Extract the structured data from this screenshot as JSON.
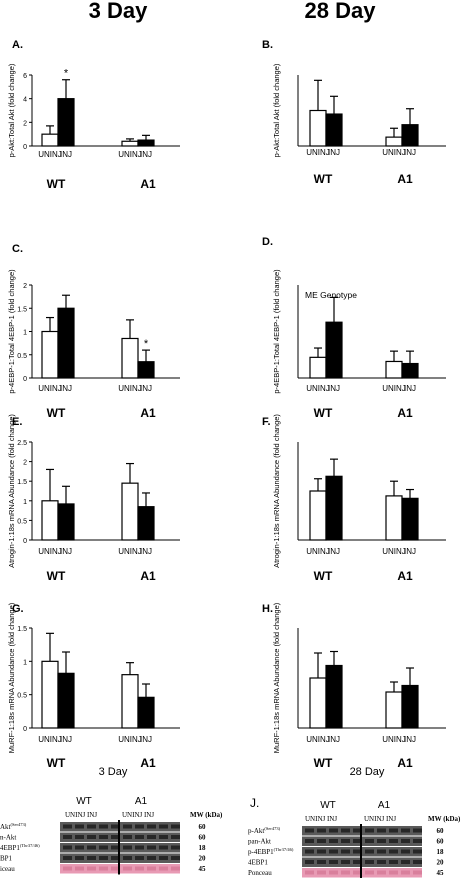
{
  "figure": {
    "col_titles": [
      "3 Day",
      "28 Day"
    ],
    "bottom_labels": [
      "3 Day",
      "28 Day"
    ],
    "legend": {
      "label": "ME Genotype",
      "panel": "D"
    },
    "blot_panel_label": "J.",
    "colors": {
      "bar_uninj": "#ffffff",
      "bar_inj": "#000000",
      "blot": "#5a5a5a",
      "ponceau": "#e89ab4"
    }
  },
  "chart_data": [
    {
      "panel": "A.",
      "type": "bar",
      "ylabel": "p-Akt:Total Akt (fold change)",
      "ylim": [
        0,
        6
      ],
      "yticks": [
        0,
        2,
        4,
        6
      ],
      "groups": [
        "WT",
        "A1"
      ],
      "categories": [
        "UNINJ",
        "INJ"
      ],
      "series": [
        {
          "name": "UNINJ",
          "values": [
            1.0,
            0.4
          ],
          "err": [
            0.7,
            0.2
          ]
        },
        {
          "name": "INJ",
          "values": [
            4.0,
            0.5
          ],
          "err": [
            1.6,
            0.4
          ]
        }
      ],
      "annotations": [
        {
          "text": "*",
          "group": 0,
          "series": 1
        }
      ]
    },
    {
      "panel": "B.",
      "type": "bar",
      "ylabel": "p-Akt:Total Akt (fold change)",
      "ylim": [
        0,
        2
      ],
      "yticks": [],
      "groups": [
        "WT",
        "A1"
      ],
      "categories": [
        "UNINJ",
        "INJ"
      ],
      "series": [
        {
          "name": "UNINJ",
          "values": [
            1.0,
            0.25
          ],
          "err": [
            0.85,
            0.25
          ]
        },
        {
          "name": "INJ",
          "values": [
            0.9,
            0.6
          ],
          "err": [
            0.5,
            0.45
          ]
        }
      ],
      "annotations": []
    },
    {
      "panel": "C.",
      "type": "bar",
      "ylabel": "p-4EBP-1:Total 4EBP-1 (fold change)",
      "ylim": [
        0,
        2.0
      ],
      "yticks": [
        0,
        0.5,
        1.0,
        1.5,
        2.0
      ],
      "groups": [
        "WT",
        "A1"
      ],
      "categories": [
        "UNINJ",
        "INJ"
      ],
      "series": [
        {
          "name": "UNINJ",
          "values": [
            1.0,
            0.85
          ],
          "err": [
            0.3,
            0.4
          ]
        },
        {
          "name": "INJ",
          "values": [
            1.5,
            0.35
          ],
          "err": [
            0.28,
            0.25
          ]
        }
      ],
      "annotations": [
        {
          "text": "*",
          "group": 1,
          "series": 1
        }
      ]
    },
    {
      "panel": "D.",
      "type": "bar",
      "ylabel": "p-4EBP-1:Total 4EBP-1 (fold change)",
      "ylim": [
        0,
        4.5
      ],
      "yticks": [],
      "groups": [
        "WT",
        "A1"
      ],
      "categories": [
        "UNINJ",
        "INJ"
      ],
      "series": [
        {
          "name": "UNINJ",
          "values": [
            1.0,
            0.8
          ],
          "err": [
            0.45,
            0.5
          ]
        },
        {
          "name": "INJ",
          "values": [
            2.7,
            0.7
          ],
          "err": [
            1.2,
            0.6
          ]
        }
      ],
      "annotations": []
    },
    {
      "panel": "E.",
      "type": "bar",
      "ylabel": "Atrogin-1:18s mRNA Abundance (fold change)",
      "ylim": [
        0,
        2.5
      ],
      "yticks": [
        0,
        0.5,
        1.0,
        1.5,
        2.0,
        2.5
      ],
      "groups": [
        "WT",
        "A1"
      ],
      "categories": [
        "UNINJ",
        "INJ"
      ],
      "series": [
        {
          "name": "UNINJ",
          "values": [
            1.0,
            1.45
          ],
          "err": [
            0.8,
            0.5
          ]
        },
        {
          "name": "INJ",
          "values": [
            0.92,
            0.85
          ],
          "err": [
            0.45,
            0.35
          ]
        }
      ],
      "annotations": []
    },
    {
      "panel": "F.",
      "type": "bar",
      "ylabel": "Atrogin-1:18s mRNA Abundance (fold change)",
      "ylim": [
        0,
        2.0
      ],
      "yticks": [],
      "groups": [
        "WT",
        "A1"
      ],
      "categories": [
        "UNINJ",
        "INJ"
      ],
      "series": [
        {
          "name": "UNINJ",
          "values": [
            1.0,
            0.9
          ],
          "err": [
            0.25,
            0.3
          ]
        },
        {
          "name": "INJ",
          "values": [
            1.3,
            0.85
          ],
          "err": [
            0.35,
            0.18
          ]
        }
      ],
      "annotations": []
    },
    {
      "panel": "G.",
      "type": "bar",
      "ylabel": "MuRF-1:18s mRNA Abundance (fold change)",
      "ylim": [
        0,
        1.5
      ],
      "yticks": [
        0.0,
        0.5,
        1.0,
        1.5
      ],
      "groups": [
        "WT",
        "A1"
      ],
      "categories": [
        "UNINJ",
        "INJ"
      ],
      "series": [
        {
          "name": "UNINJ",
          "values": [
            1.0,
            0.8
          ],
          "err": [
            0.42,
            0.18
          ]
        },
        {
          "name": "INJ",
          "values": [
            0.82,
            0.46
          ],
          "err": [
            0.32,
            0.2
          ]
        }
      ],
      "annotations": []
    },
    {
      "panel": "H.",
      "type": "bar",
      "ylabel": "MuRF-1:18s mRNA Abundance (fold change)",
      "ylim": [
        0,
        2.0
      ],
      "yticks": [],
      "groups": [
        "WT",
        "A1"
      ],
      "categories": [
        "UNINJ",
        "INJ"
      ],
      "series": [
        {
          "name": "UNINJ",
          "values": [
            1.0,
            0.72
          ],
          "err": [
            0.5,
            0.2
          ]
        },
        {
          "name": "INJ",
          "values": [
            1.25,
            0.85
          ],
          "err": [
            0.28,
            0.35
          ]
        }
      ],
      "annotations": []
    }
  ],
  "blots": [
    {
      "groups": [
        "WT",
        "A1"
      ],
      "lanes_label": "UNINJ   INJ",
      "mw_header": "MW (kDa)",
      "rows": [
        {
          "label": "Akt",
          "sup": "(Ser473)",
          "mw": "60"
        },
        {
          "label": "n-Akt",
          "sup": "",
          "mw": "60"
        },
        {
          "label": "4EBP1",
          "sup": "(Thr37/46)",
          "mw": "18"
        },
        {
          "label": "BP1",
          "sup": "",
          "mw": "20"
        },
        {
          "label": "iceau",
          "sup": "",
          "mw": "45"
        }
      ]
    },
    {
      "groups": [
        "WT",
        "A1"
      ],
      "lanes_label": "UNINJ   INJ",
      "mw_header": "MW (kDa)",
      "rows": [
        {
          "label": "p-Akt",
          "sup": "(Ser473)",
          "mw": "60"
        },
        {
          "label": "pan-Akt",
          "sup": "",
          "mw": "60"
        },
        {
          "label": "p-4EBP1",
          "sup": "(Thr37/46)",
          "mw": "18"
        },
        {
          "label": "4EBP1",
          "sup": "",
          "mw": "20"
        },
        {
          "label": "Ponceau",
          "sup": "",
          "mw": "45"
        }
      ]
    }
  ]
}
